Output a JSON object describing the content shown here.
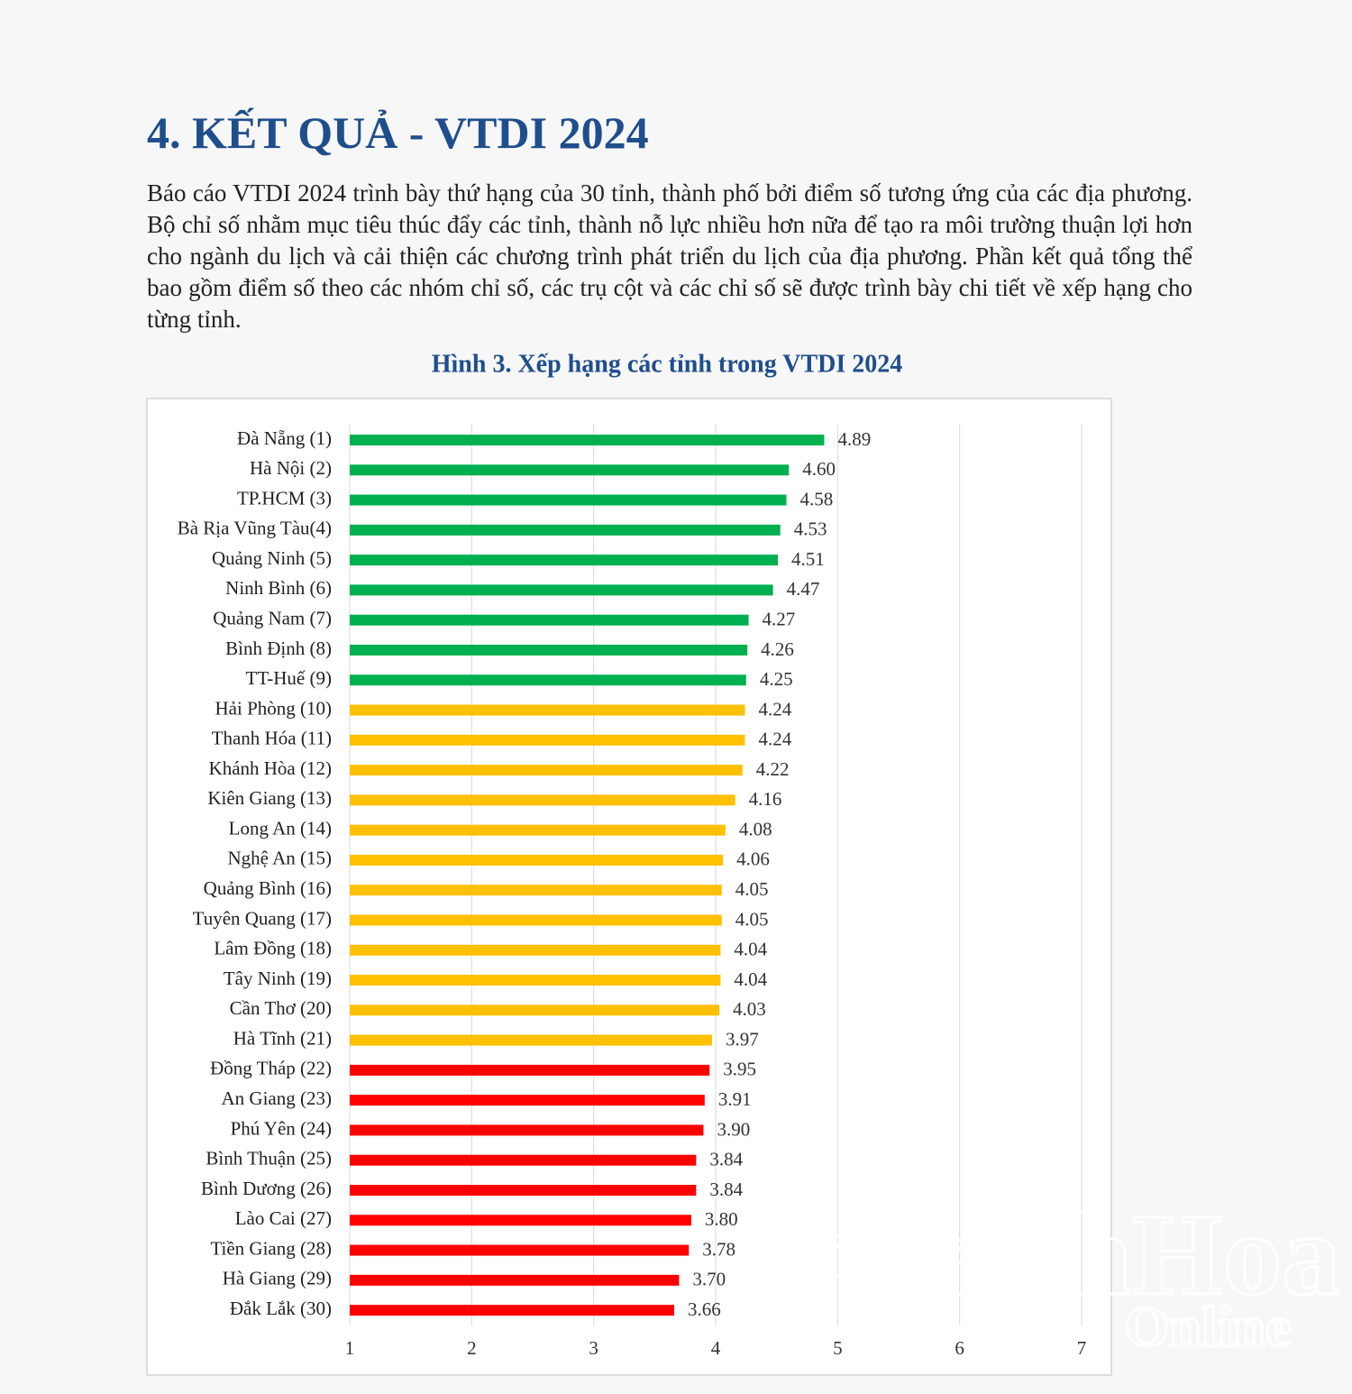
{
  "heading": "4. KẾT QUẢ - VTDI 2024",
  "paragraph": "Báo cáo VTDI 2024 trình bày thứ hạng của 30 tỉnh, thành phố bởi điểm số tương ứng của các địa phương. Bộ chỉ số nhằm mục tiêu thúc đẩy các tỉnh, thành nỗ lực nhiều hơn nữa để tạo ra môi trường thuận lợi hơn cho ngành du lịch và cải thiện các chương trình phát triển du lịch của địa phương. Phần kết quả tổng thể bao gồm điểm số theo các nhóm chỉ số, các trụ cột và các chỉ số sẽ được trình bày chi tiết về xếp hạng cho từng tỉnh.",
  "watermark": [
    "KhanhHoa",
    "Online"
  ],
  "chart_data": {
    "type": "barh",
    "title": "Hình  3. Xếp hạng các tỉnh trong VTDI 2024",
    "categories": [
      "Đà Nẵng (1)",
      "Hà Nội (2)",
      "TP.HCM (3)",
      "Bà Rịa Vũng Tàu(4)",
      "Quảng Ninh (5)",
      "Ninh Bình (6)",
      "Quảng Nam (7)",
      "Bình Định (8)",
      "TT-Huế (9)",
      "Hải Phòng (10)",
      "Thanh Hóa (11)",
      "Khánh Hòa (12)",
      "Kiên Giang (13)",
      "Long An (14)",
      "Nghệ An (15)",
      "Quảng Bình (16)",
      "Tuyên Quang (17)",
      "Lâm Đồng (18)",
      "Tây Ninh (19)",
      "Cần Thơ (20)",
      "Hà Tĩnh (21)",
      "Đồng Tháp (22)",
      "An Giang (23)",
      "Phú Yên (24)",
      "Bình Thuận (25)",
      "Bình Dương (26)",
      "Lào Cai (27)",
      "Tiền Giang (28)",
      "Hà Giang (29)",
      "Đắk Lắk (30)"
    ],
    "values": [
      4.89,
      4.6,
      4.58,
      4.53,
      4.51,
      4.47,
      4.27,
      4.26,
      4.25,
      4.24,
      4.24,
      4.22,
      4.16,
      4.08,
      4.06,
      4.05,
      4.05,
      4.04,
      4.04,
      4.03,
      3.97,
      3.95,
      3.91,
      3.9,
      3.84,
      3.84,
      3.8,
      3.78,
      3.7,
      3.66
    ],
    "value_labels": [
      "4.89",
      "4.60",
      "4.58",
      "4.53",
      "4.51",
      "4.47",
      "4.27",
      "4.26",
      "4.25",
      "4.24",
      "4.24",
      "4.22",
      "4.16",
      "4.08",
      "4.06",
      "4.05",
      "4.05",
      "4.04",
      "4.04",
      "4.03",
      "3.97",
      "3.95",
      "3.91",
      "3.90",
      "3.84",
      "3.84",
      "3.80",
      "3.78",
      "3.70",
      "3.66"
    ],
    "colors": [
      "#00b050",
      "#00b050",
      "#00b050",
      "#00b050",
      "#00b050",
      "#00b050",
      "#00b050",
      "#00b050",
      "#00b050",
      "#ffc000",
      "#ffc000",
      "#ffc000",
      "#ffc000",
      "#ffc000",
      "#ffc000",
      "#ffc000",
      "#ffc000",
      "#ffc000",
      "#ffc000",
      "#ffc000",
      "#ffc000",
      "#ff0000",
      "#ff0000",
      "#ff0000",
      "#ff0000",
      "#ff0000",
      "#ff0000",
      "#ff0000",
      "#ff0000",
      "#ff0000"
    ],
    "xlim": [
      1,
      7
    ],
    "xticks": [
      1,
      2,
      3,
      4,
      5,
      6,
      7
    ],
    "grid": true
  }
}
